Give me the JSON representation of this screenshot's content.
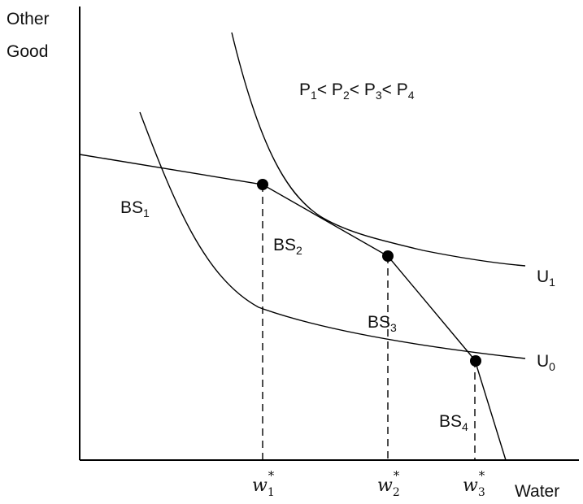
{
  "axes": {
    "y_label_line1": "Other",
    "y_label_line2": "Good",
    "x_label": "Water"
  },
  "price_relation": {
    "p1": "P",
    "p1_sub": "1",
    "lt1": "< ",
    "p2": "P",
    "p2_sub": "2",
    "lt2": "< ",
    "p3": "P",
    "p3_sub": "3",
    "lt3": "< ",
    "p4": "P",
    "p4_sub": "4"
  },
  "budget_segments": [
    {
      "base": "BS",
      "sub": "1"
    },
    {
      "base": "BS",
      "sub": "2"
    },
    {
      "base": "BS",
      "sub": "3"
    },
    {
      "base": "BS",
      "sub": "4"
    }
  ],
  "utility_curves": [
    {
      "base": "U",
      "sub": "1"
    },
    {
      "base": "U",
      "sub": "0"
    }
  ],
  "quantities": [
    {
      "base": "w",
      "sub": "1",
      "sup": "*"
    },
    {
      "base": "w",
      "sub": "2",
      "sup": "*"
    },
    {
      "base": "w",
      "sub": "3",
      "sup": "*"
    }
  ]
}
